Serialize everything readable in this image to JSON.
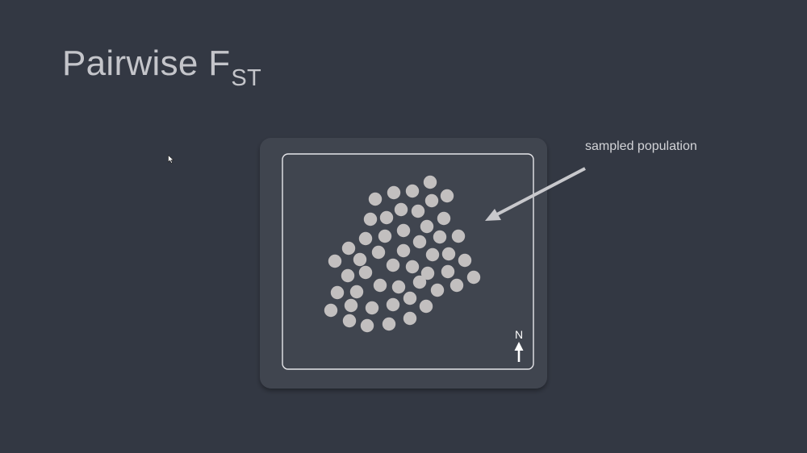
{
  "slide": {
    "title_main": "Pairwise F",
    "title_sub": "ST"
  },
  "map": {
    "annotation": "sampled population",
    "north_label": "N",
    "population_dot_count": 57
  },
  "colors": {
    "background": "#333843",
    "panel": "#40444f",
    "border": "#e6e6ea",
    "dot": "#c2bfbf",
    "arrow": "#c8c8cc"
  },
  "icons": {
    "cursor": "mouse-pointer-icon",
    "north": "north-arrow-icon",
    "pointer": "annotation-arrow-icon"
  }
}
